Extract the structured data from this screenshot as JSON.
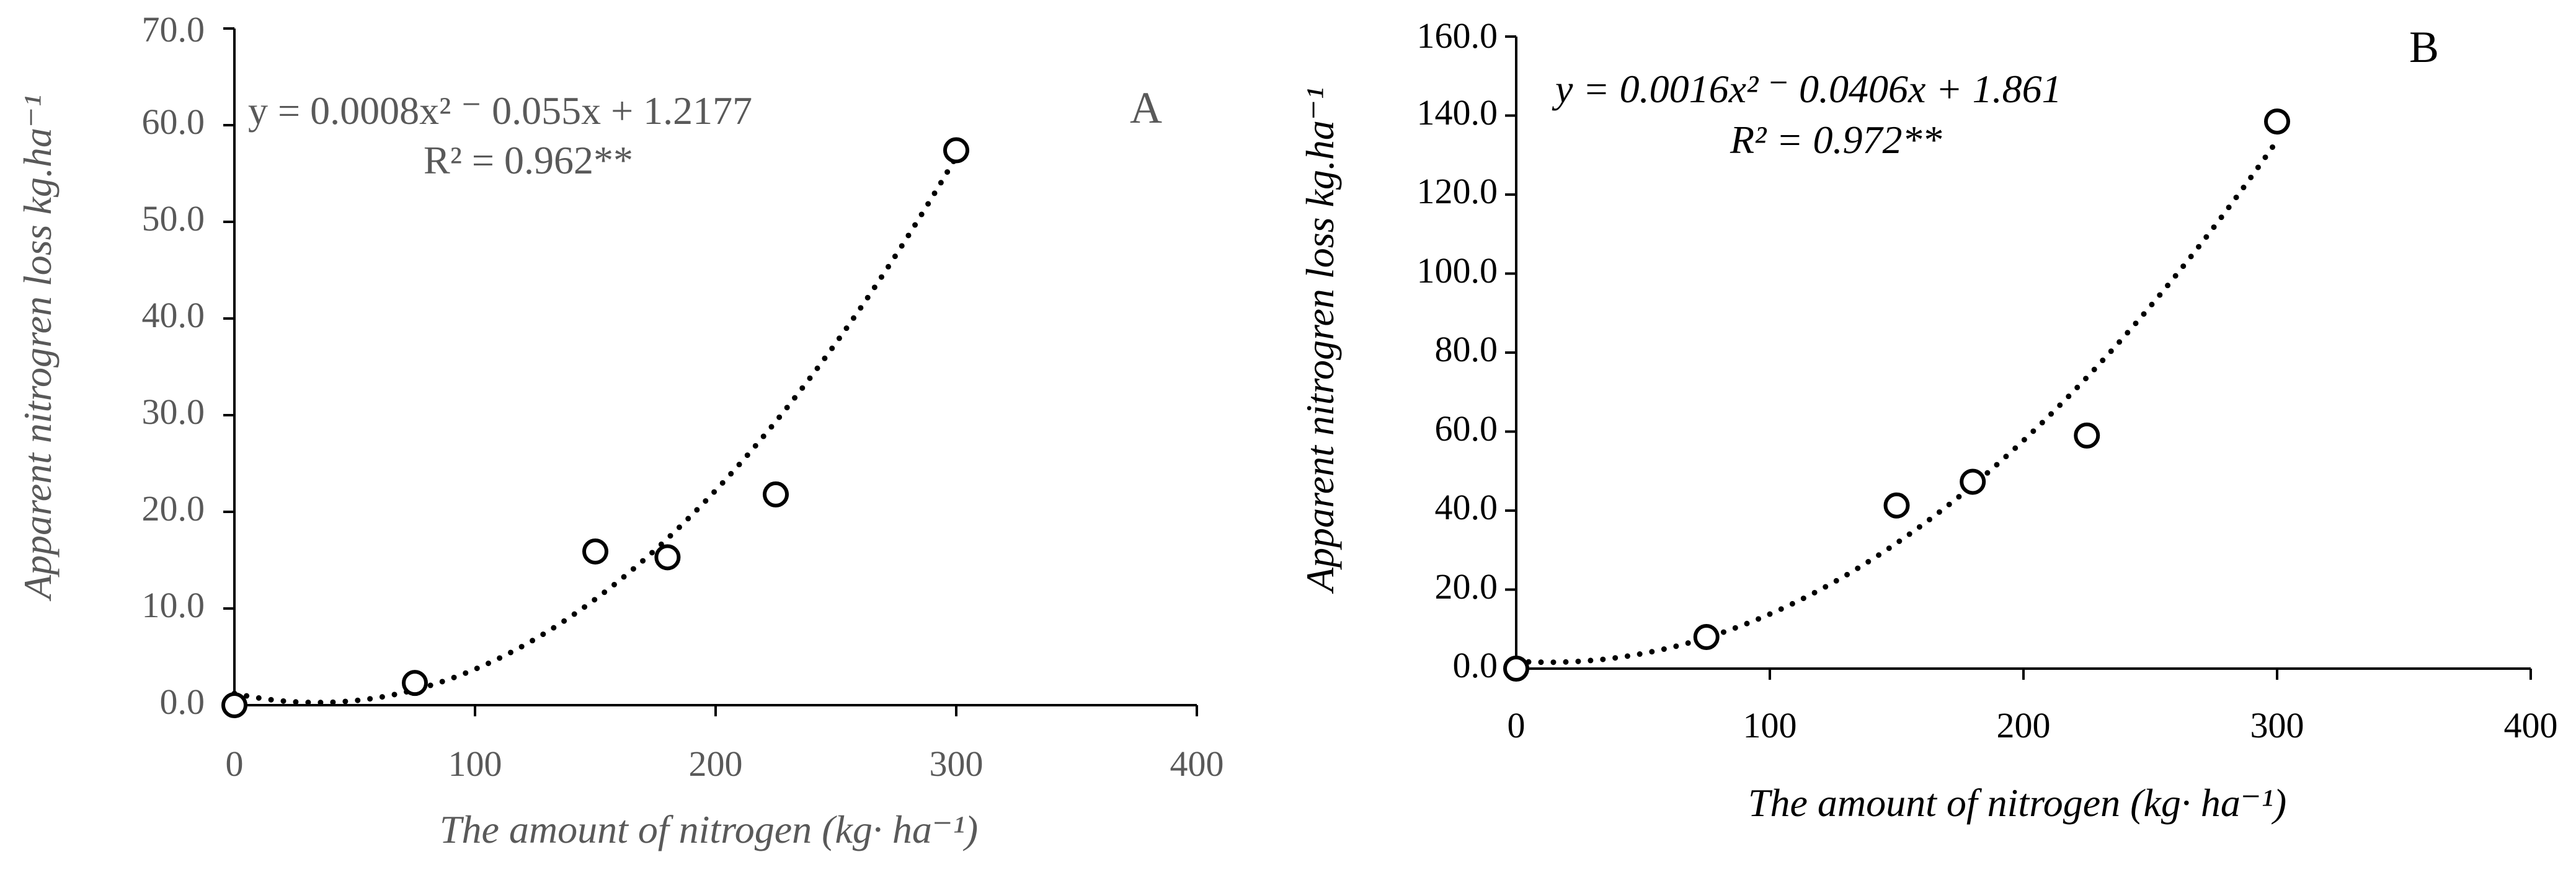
{
  "chart_data": [
    {
      "panel_label": "A",
      "type": "scatter",
      "title": "",
      "xlabel": "The amount of nitrogen (kg· ha⁻¹)",
      "ylabel": "Apparent nitrogren loss kg.ha⁻¹",
      "xlim": [
        0,
        400
      ],
      "ylim": [
        0,
        70
      ],
      "xticks": [
        0,
        100,
        200,
        300,
        400
      ],
      "yticks": [
        0,
        10,
        20,
        30,
        40,
        50,
        60,
        70
      ],
      "xtick_labels": [
        "0",
        "100",
        "200",
        "300",
        "400"
      ],
      "ytick_labels": [
        "0.0",
        "10.0",
        "20.0",
        "30.0",
        "40.0",
        "50.0",
        "60.0",
        "70.0"
      ],
      "x": [
        0,
        75,
        150,
        180,
        225,
        300
      ],
      "y": [
        0.0,
        2.3,
        15.9,
        15.3,
        21.8,
        57.4
      ],
      "trendline": {
        "type": "polynomial",
        "order": 2,
        "coefficients": [
          0.0008,
          -0.055,
          1.2177
        ],
        "style": "dotted"
      },
      "equation": "y = 0.0008x² ⁻ 0.055x + 1.2177",
      "r_squared": "R² = 0.962**",
      "label_color": "#595959",
      "grid": false,
      "legend": "none"
    },
    {
      "panel_label": "B",
      "type": "scatter",
      "title": "",
      "xlabel": "The amount of nitrogen (kg· ha⁻¹)",
      "ylabel": "Apparent nitrogren loss kg.ha⁻¹",
      "xlim": [
        0,
        400
      ],
      "ylim": [
        0,
        160
      ],
      "xticks": [
        0,
        100,
        200,
        300,
        400
      ],
      "yticks": [
        0,
        20,
        40,
        60,
        80,
        100,
        120,
        140,
        160
      ],
      "xtick_labels": [
        "0",
        "100",
        "200",
        "300",
        "400"
      ],
      "ytick_labels": [
        "0.0",
        "20.0",
        "40.0",
        "60.0",
        "80.0",
        "100.0",
        "120.0",
        "140.0",
        "160.0"
      ],
      "x": [
        0,
        75,
        150,
        180,
        225,
        300
      ],
      "y": [
        0.0,
        8.0,
        41.3,
        47.3,
        59.0,
        138.5
      ],
      "trendline": {
        "type": "polynomial",
        "order": 2,
        "coefficients": [
          0.0016,
          -0.0406,
          1.861
        ],
        "style": "dotted"
      },
      "equation": "y = 0.0016x² ⁻ 0.0406x + 1.861",
      "r_squared": "R² = 0.972**",
      "label_color": "#000000",
      "grid": false,
      "legend": "none"
    }
  ]
}
